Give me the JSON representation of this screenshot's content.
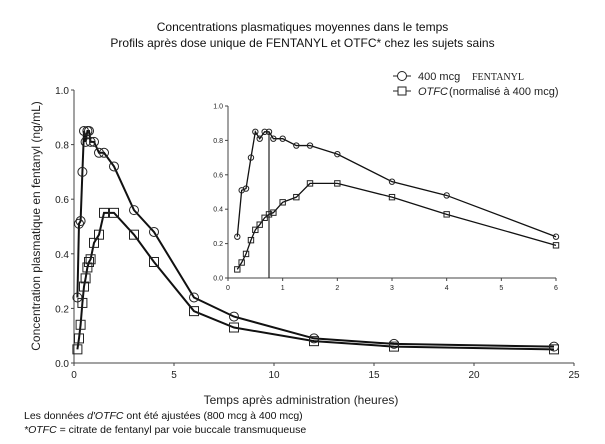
{
  "chart_data": {
    "type": "line",
    "title": "Concentrations plasmatiques moyennes dans le temps",
    "subtitle": "Profils après dose unique de FENTANYL et OTFC* chez les sujets sains",
    "xlabel": "Temps après administration (heures)",
    "ylabel": "Concentration plasmatique en fentanyl (ng/mL)",
    "xlim": [
      0,
      25
    ],
    "ylim": [
      0,
      1.0
    ],
    "xticks": [
      "0",
      "5",
      "10",
      "15",
      "20",
      "25"
    ],
    "yticks": [
      "0.0",
      "0.2",
      "0.4",
      "0.6",
      "0.8",
      "1.0"
    ],
    "legend": {
      "placement": "top-right",
      "entries": [
        {
          "marker": "circle",
          "label_a": "400 mcg",
          "label_b": "FENTANYL"
        },
        {
          "marker": "square",
          "label_a": "OTFC",
          "label_b": " (normalisé à 400 mcg)"
        }
      ]
    },
    "series": [
      {
        "name": "400 mcg FENTANYL",
        "marker": "circle",
        "x": [
          0.17,
          0.25,
          0.33,
          0.42,
          0.5,
          0.58,
          0.67,
          0.75,
          0.83,
          1,
          1.25,
          1.5,
          2,
          3,
          4,
          6,
          8,
          12,
          16,
          24
        ],
        "y": [
          0.24,
          0.51,
          0.52,
          0.7,
          0.85,
          0.81,
          0.85,
          0.85,
          0.81,
          0.81,
          0.77,
          0.77,
          0.72,
          0.56,
          0.48,
          0.24,
          0.17,
          0.09,
          0.07,
          0.06
        ]
      },
      {
        "name": "OTFC (normalisé à 400 mcg)",
        "marker": "square",
        "x": [
          0.17,
          0.25,
          0.33,
          0.42,
          0.5,
          0.58,
          0.67,
          0.75,
          0.83,
          1,
          1.25,
          1.5,
          2,
          3,
          4,
          6,
          8,
          12,
          16,
          24
        ],
        "y": [
          0.05,
          0.09,
          0.14,
          0.22,
          0.28,
          0.31,
          0.35,
          0.37,
          0.38,
          0.44,
          0.47,
          0.55,
          0.55,
          0.47,
          0.37,
          0.19,
          0.13,
          0.08,
          0.06,
          0.05
        ]
      }
    ],
    "inset": {
      "xlim": [
        0,
        6
      ],
      "ylim": [
        0,
        1.0
      ],
      "xticks": [
        "0",
        "1",
        "2",
        "3",
        "4",
        "5",
        "6"
      ],
      "yticks": [
        "0.0",
        "0.2",
        "0.4",
        "0.6",
        "0.8",
        "1.0"
      ],
      "vline_x": 0.75
    }
  },
  "footnotes": {
    "line1_a": "Les données ",
    "line1_b": "d'OTFC",
    "line1_c": " ont été ajustées (800 mcg à 400 mcg)",
    "line2_a": "*OTFC",
    "line2_b": " = citrate de fentanyl par voie buccale transmuqueuse"
  }
}
